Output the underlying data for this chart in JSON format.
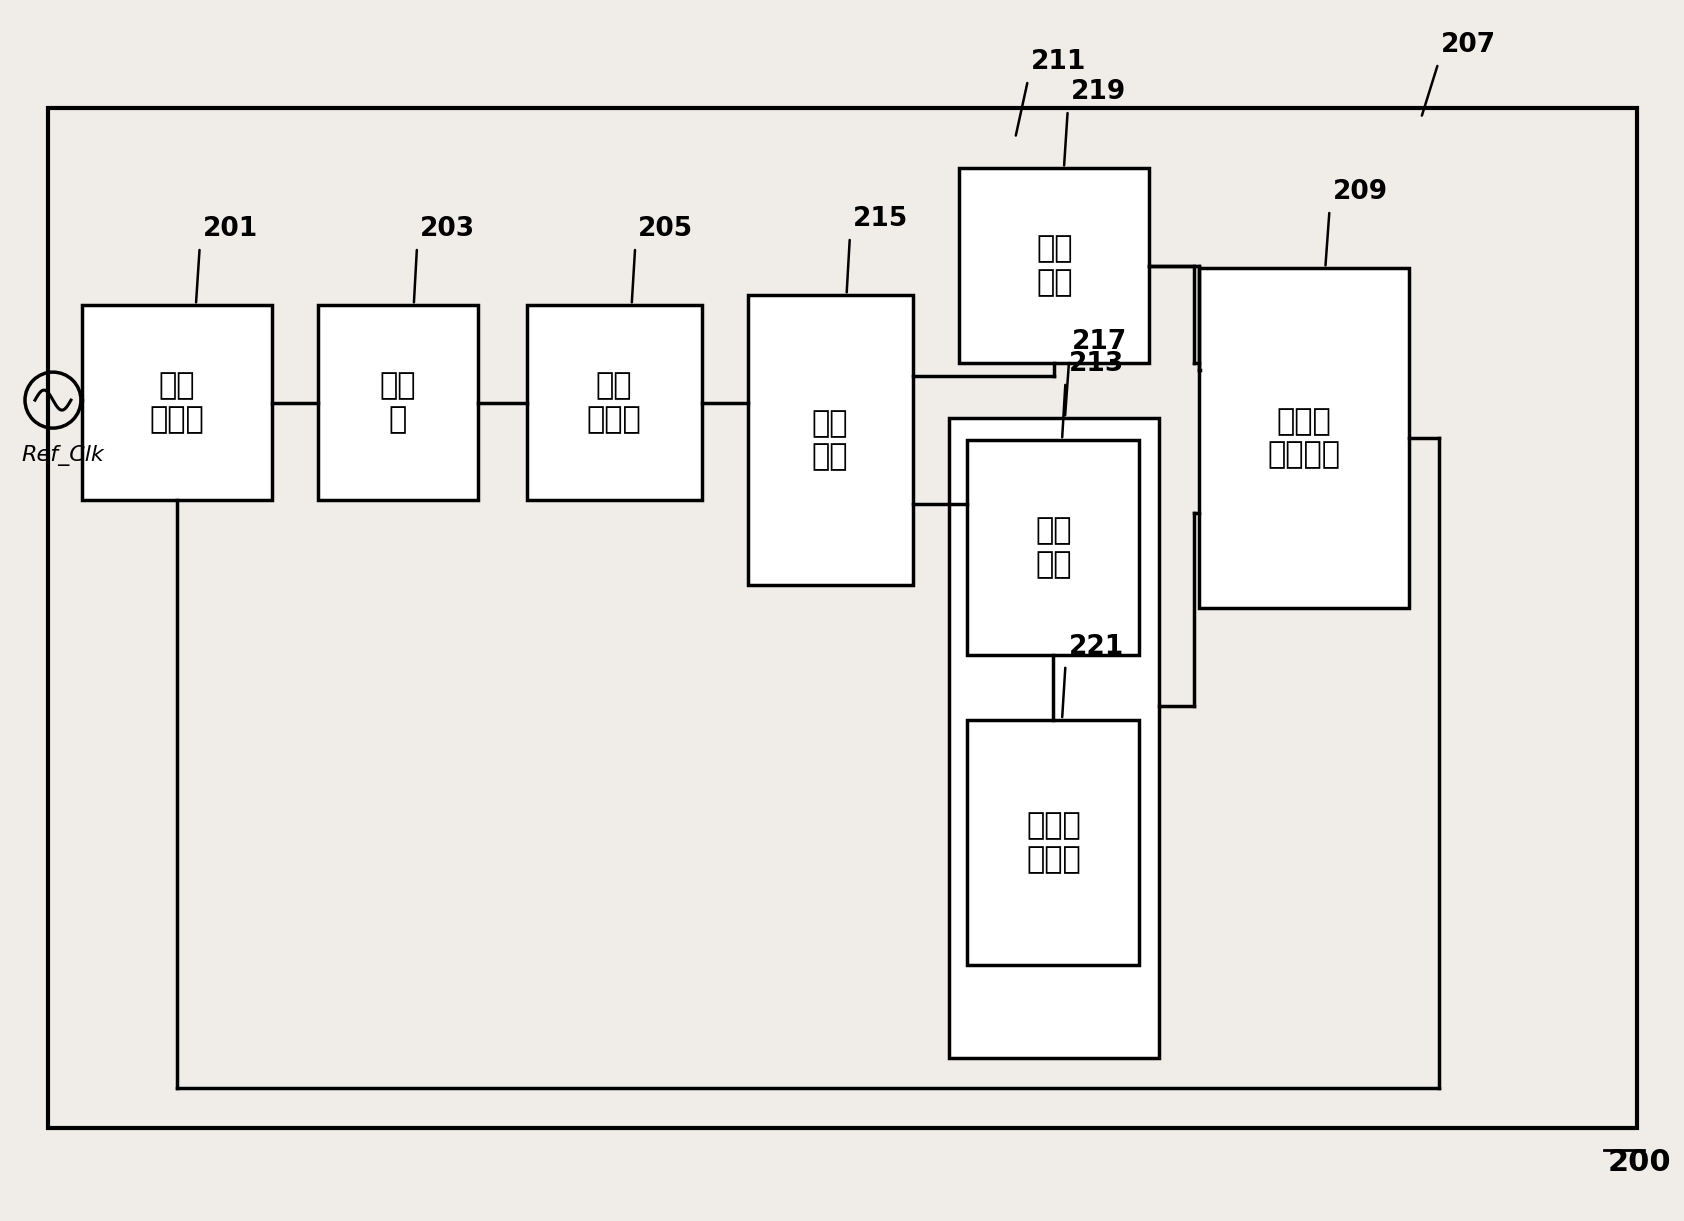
{
  "bg_color": "#f0ede8",
  "line_color": "#000000",
  "box_color": "#ffffff",
  "text_201": "相位\n侦测器",
  "text_203": "电荷\n泵",
  "text_205": "回路\n滤波器",
  "text_209": "环形振\n荡器单元",
  "text_213": "处理\n单元",
  "text_215": "滤波\n单元",
  "text_219": "驱动\n单元",
  "text_221": "电容调\n整单元",
  "ref_clk": "Ref_Clk"
}
